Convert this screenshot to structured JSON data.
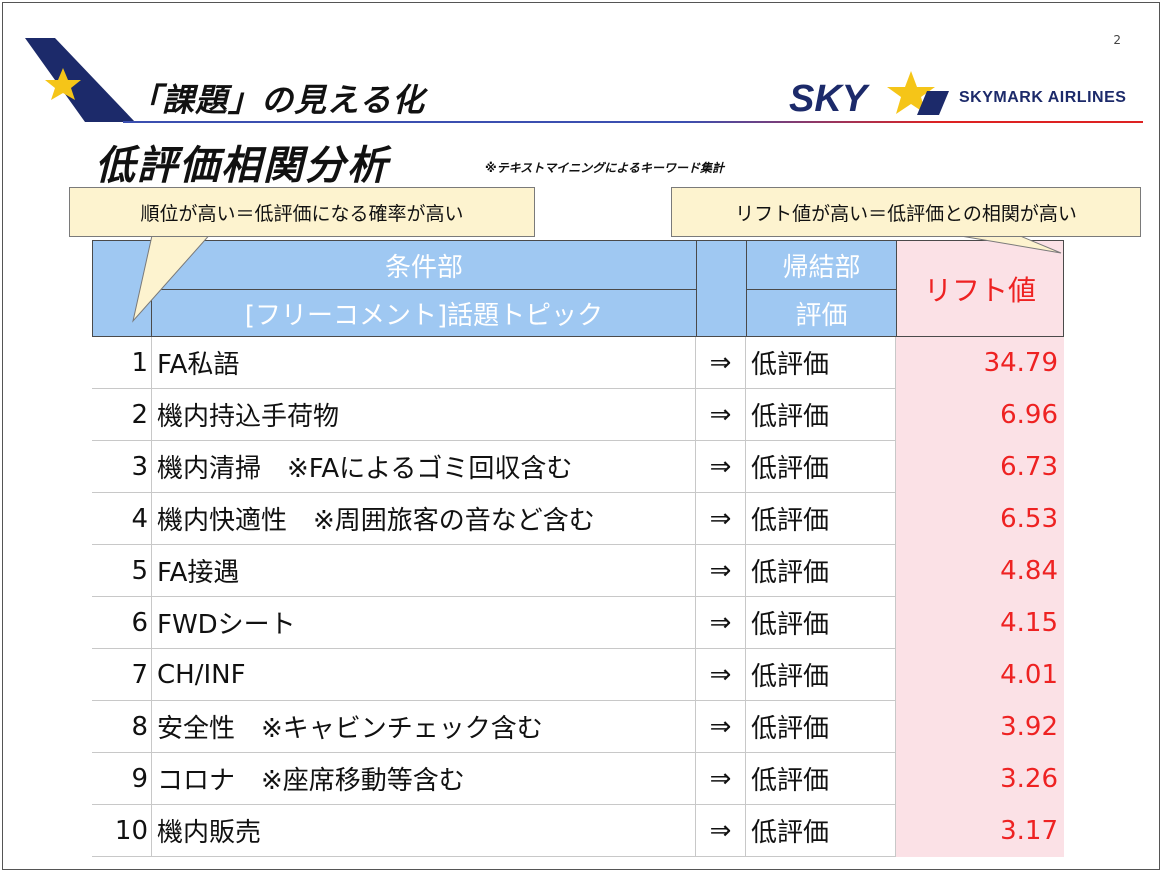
{
  "page_number": "2",
  "header": {
    "subtitle": "「課題」の見える化",
    "brand_logo_text": "SKY",
    "brand_name": "SKYMARK AIRLINES"
  },
  "title": "低評価相関分析",
  "note": "※テキストマイニングによるキーワード集計",
  "callouts": {
    "left": "順位が高い＝低評価になる確率が高い",
    "right": "リフト値が高い＝低評価との相関が高い"
  },
  "table": {
    "condition_header": "条件部",
    "condition_subheader": "[フリーコメント]話題トピック",
    "result_header": "帰結部",
    "result_subheader": "評価",
    "lift_header": "リフト値",
    "rows": [
      {
        "rank": "1",
        "topic": "FA私語",
        "arrow": "⇒",
        "eval": "低評価",
        "lift": "34.79"
      },
      {
        "rank": "2",
        "topic": "機内持込手荷物",
        "arrow": "⇒",
        "eval": "低評価",
        "lift": "6.96"
      },
      {
        "rank": "3",
        "topic": "機内清掃　※FAによるゴミ回収含む",
        "arrow": "⇒",
        "eval": "低評価",
        "lift": "6.73"
      },
      {
        "rank": "4",
        "topic": "機内快適性　※周囲旅客の音など含む",
        "arrow": "⇒",
        "eval": "低評価",
        "lift": "6.53"
      },
      {
        "rank": "5",
        "topic": "FA接遇",
        "arrow": "⇒",
        "eval": "低評価",
        "lift": "4.84"
      },
      {
        "rank": "6",
        "topic": "FWDシート",
        "arrow": "⇒",
        "eval": "低評価",
        "lift": "4.15"
      },
      {
        "rank": "7",
        "topic": "CH/INF",
        "arrow": "⇒",
        "eval": "低評価",
        "lift": "4.01"
      },
      {
        "rank": "8",
        "topic": "安全性　※キャビンチェック含む",
        "arrow": "⇒",
        "eval": "低評価",
        "lift": "3.92"
      },
      {
        "rank": "9",
        "topic": "コロナ　※座席移動等含む",
        "arrow": "⇒",
        "eval": "低評価",
        "lift": "3.26"
      },
      {
        "rank": "10",
        "topic": "機内販売",
        "arrow": "⇒",
        "eval": "低評価",
        "lift": "3.17"
      }
    ]
  },
  "colors": {
    "header_blue": "#9fc8f2",
    "lift_pink": "#fbe1e6",
    "lift_red": "#e22",
    "callout_yellow": "#fdf3cf",
    "brand_navy": "#1c2a6a",
    "star_yellow": "#f5c518"
  }
}
